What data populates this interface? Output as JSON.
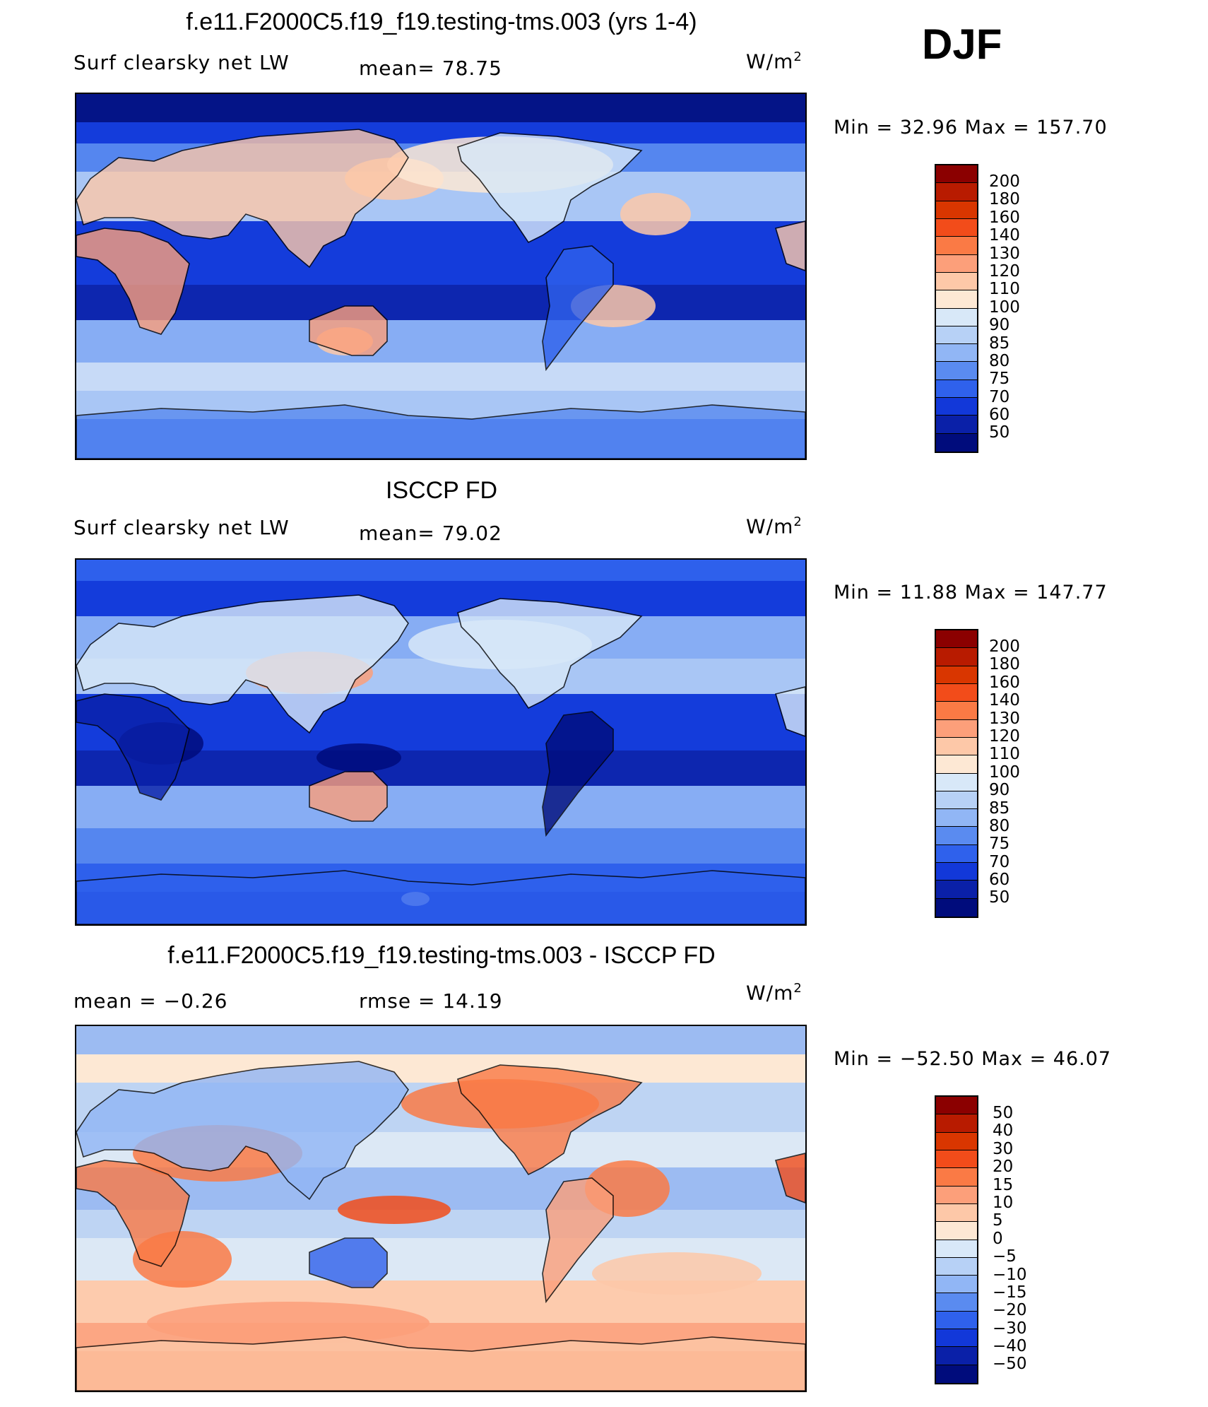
{
  "season": "DJF",
  "panels": [
    {
      "title": "f.e11.F2000C5.f19_f19.testing-tms.003 (yrs 1-4)",
      "left_label": "Surf clearsky net LW",
      "center_label": "mean=  78.75",
      "units": "W/m",
      "units_exp": "2",
      "minmax": "Min =   32.96 Max = 157.70",
      "colorbar": {
        "labels": [
          "200",
          "180",
          "160",
          "140",
          "130",
          "120",
          "110",
          "100",
          "90",
          "85",
          "80",
          "75",
          "70",
          "60",
          "50"
        ],
        "colors": [
          "#8b0000",
          "#b81b00",
          "#d93600",
          "#f24c1a",
          "#fa7a45",
          "#fc9f7a",
          "#fdc8a8",
          "#fde8d4",
          "#d8e8f8",
          "#b7d1f6",
          "#91b6f5",
          "#5a8bf0",
          "#2f61ec",
          "#1238d9",
          "#0a20a8",
          "#000c7c"
        ]
      },
      "map_type": "model"
    },
    {
      "title": "ISCCP FD",
      "left_label": "Surf clearsky net LW",
      "center_label": "mean=  79.02",
      "units": "W/m",
      "units_exp": "2",
      "minmax": "Min =   11.88 Max = 147.77",
      "colorbar": {
        "labels": [
          "200",
          "180",
          "160",
          "140",
          "130",
          "120",
          "110",
          "100",
          "90",
          "85",
          "80",
          "75",
          "70",
          "60",
          "50"
        ],
        "colors": [
          "#8b0000",
          "#b81b00",
          "#d93600",
          "#f24c1a",
          "#fa7a45",
          "#fc9f7a",
          "#fdc8a8",
          "#fde8d4",
          "#d8e8f8",
          "#b7d1f6",
          "#91b6f5",
          "#5a8bf0",
          "#2f61ec",
          "#1238d9",
          "#0a20a8",
          "#000c7c"
        ]
      },
      "map_type": "obs"
    },
    {
      "title": "f.e11.F2000C5.f19_f19.testing-tms.003 - ISCCP FD",
      "left_label": "mean =   −0.26",
      "center_label": "rmse =   14.19",
      "units": "W/m",
      "units_exp": "2",
      "minmax": "Min = −52.50 Max =   46.07",
      "colorbar": {
        "labels": [
          "50",
          "40",
          "30",
          "20",
          "15",
          "10",
          "5",
          "0",
          "−5",
          "−10",
          "−15",
          "−20",
          "−30",
          "−40",
          "−50"
        ],
        "colors": [
          "#8b0000",
          "#b81b00",
          "#d93600",
          "#f24c1a",
          "#fa7a45",
          "#fc9f7a",
          "#fdc8a8",
          "#fde8d4",
          "#d8e8f8",
          "#b7d1f6",
          "#91b6f5",
          "#5a8bf0",
          "#2f61ec",
          "#1238d9",
          "#0a20a8",
          "#000c7c"
        ]
      },
      "map_type": "diff"
    }
  ]
}
